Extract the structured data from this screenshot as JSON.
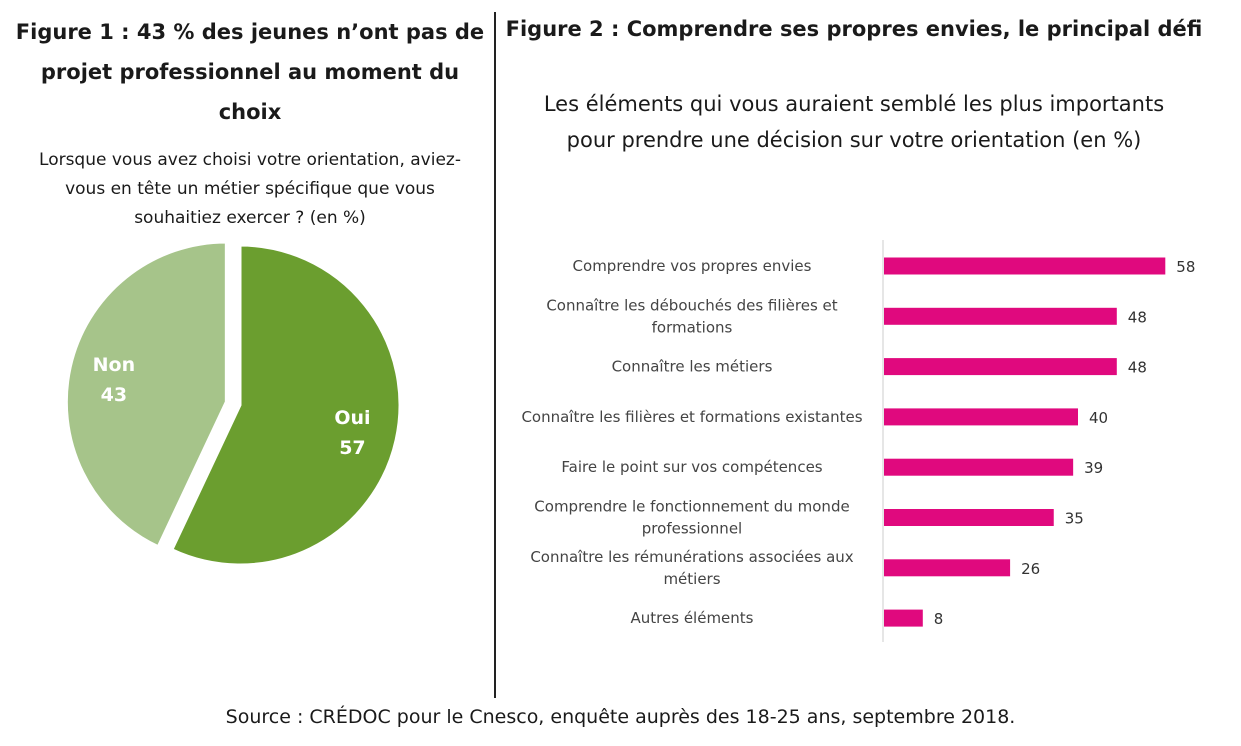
{
  "colors": {
    "pie_oui": "#6b9e2f",
    "pie_non": "#a6c48a",
    "bar": "#e0097e",
    "axis": "#cccccc"
  },
  "figure1": {
    "title": "Figure 1 : 43 % des jeunes n’ont pas de projet professionnel au moment du choix",
    "subtitle": "Lorsque vous avez choisi votre orientation, aviez-vous en tête un métier spécifique que vous souhaitiez exercer ? (en %)"
  },
  "figure2": {
    "title": "Figure 2 : Comprendre ses propres envies, le principal défi",
    "subtitle": "Les éléments qui vous auraient semblé les plus importants pour prendre une décision sur votre orientation (en %)"
  },
  "source": "Source : CRÉDOC pour le Cnesco, enquête auprès des 18-25 ans, septembre 2018.",
  "chart_data": [
    {
      "type": "pie",
      "title": "Figure 1 : 43 % des jeunes n’ont pas de projet professionnel au moment du choix",
      "subtitle": "Lorsque vous avez choisi votre orientation, aviez-vous en tête un métier spécifique que vous souhaitiez exercer ? (en %)",
      "categories": [
        "Oui",
        "Non"
      ],
      "values": [
        57,
        43
      ],
      "exploded": "Non",
      "colors": [
        "#6b9e2f",
        "#a6c48a"
      ]
    },
    {
      "type": "bar",
      "orientation": "horizontal",
      "title": "Figure 2 : Comprendre ses propres envies, le principal défi",
      "subtitle": "Les éléments qui vous auraient semblé les plus importants pour prendre une décision sur votre orientation (en %)",
      "categories": [
        "Comprendre vos propres envies",
        "Connaître les débouchés des filières et formations",
        "Connaître les métiers",
        "Connaître les filières et formations existantes",
        "Faire le point sur vos compétences",
        "Comprendre le fonctionnement du monde professionnel",
        "Connaître les rémunérations associées aux métiers",
        "Autres éléments"
      ],
      "values": [
        58,
        48,
        48,
        40,
        39,
        35,
        26,
        8
      ],
      "xlim": [
        0,
        60
      ],
      "grid": false,
      "data_labels": true,
      "color": "#e0097e"
    }
  ]
}
